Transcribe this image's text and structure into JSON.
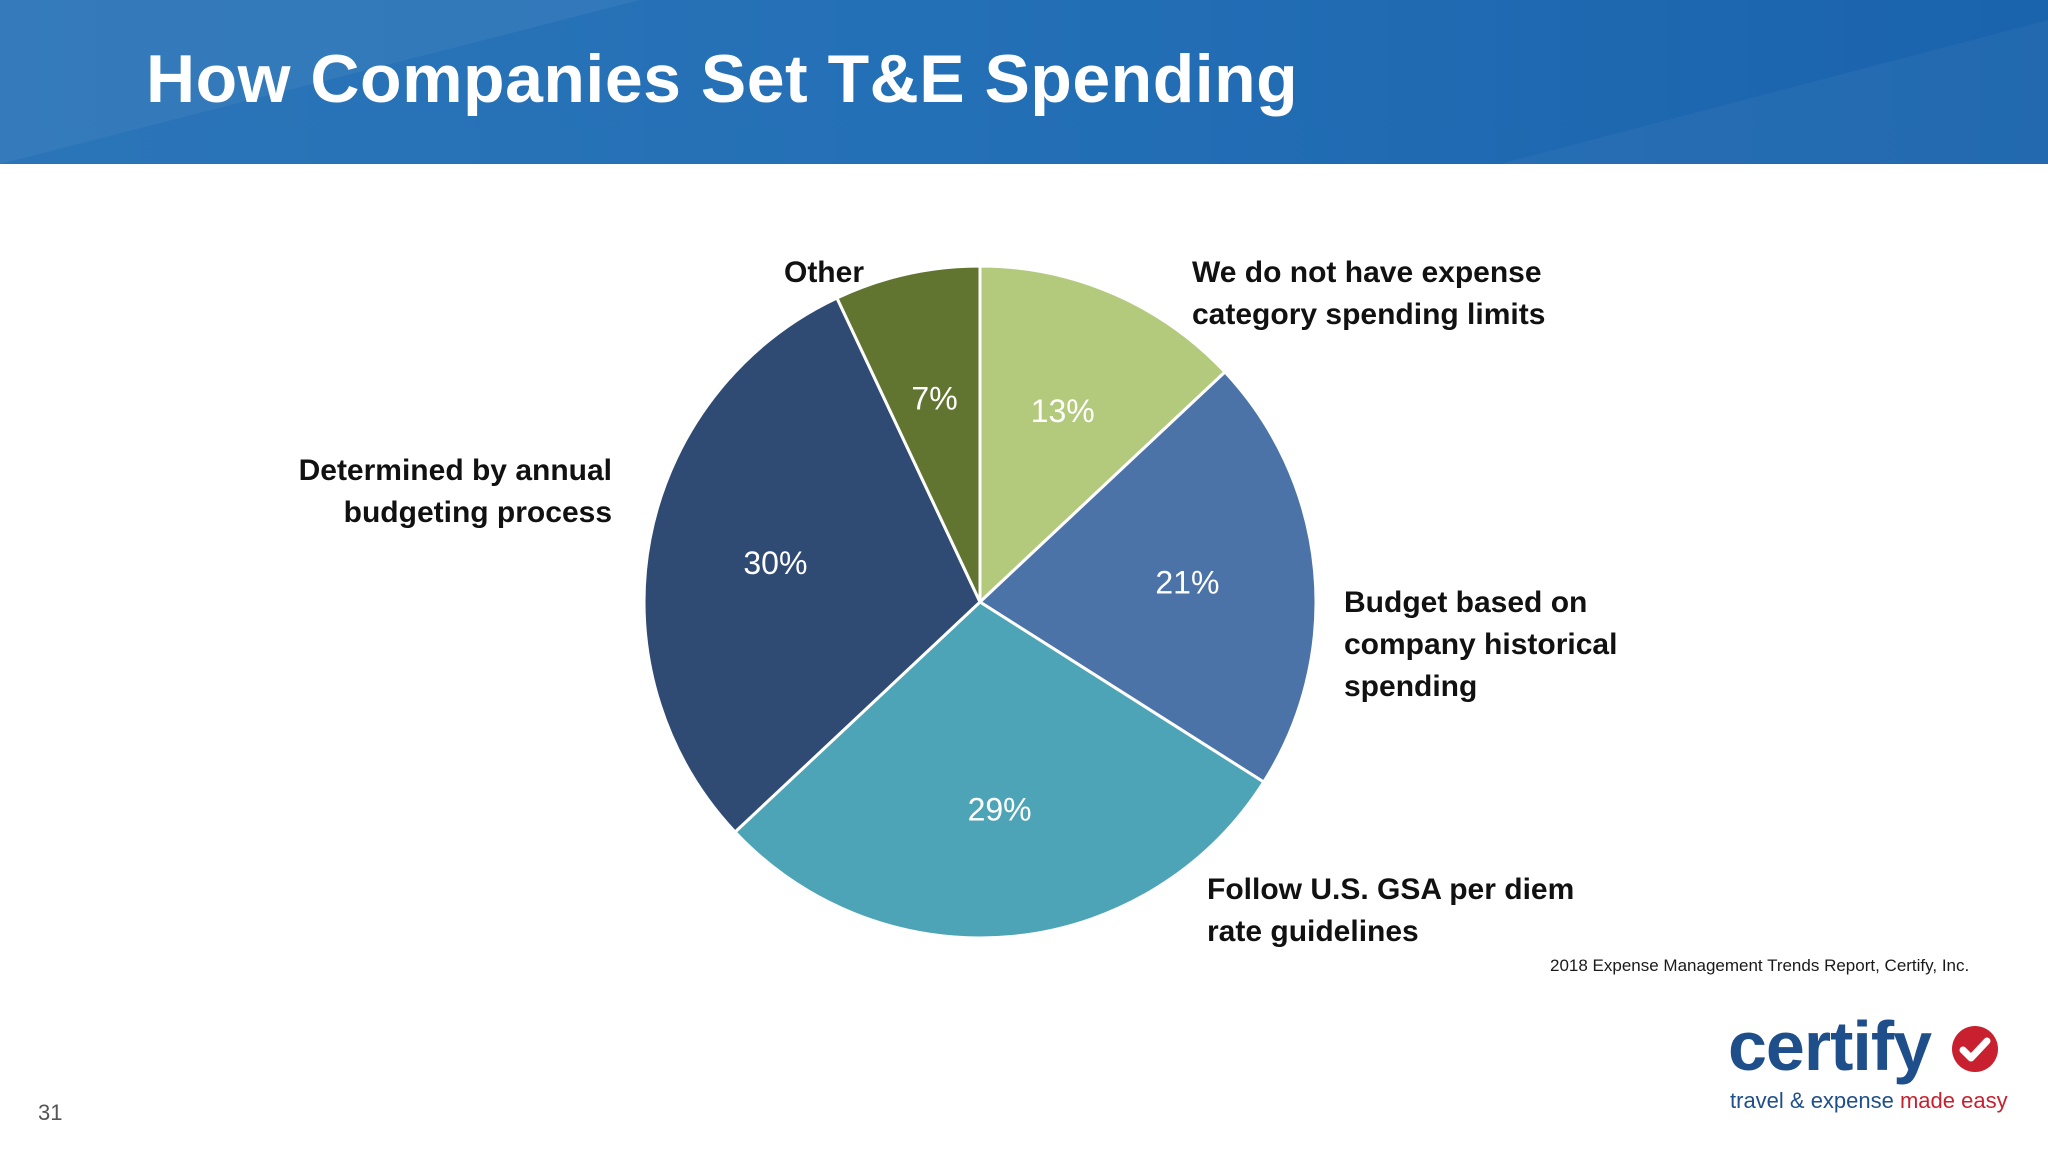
{
  "slide": {
    "title": "How Companies Set T&E Spending",
    "page_number": "31",
    "source": "2018 Expense Management Trends Report, Certify, Inc."
  },
  "logo": {
    "wordmark": "certify",
    "tagline_part1": "travel & expense ",
    "tagline_part2": "made easy",
    "brand_color": "#1f4f8a",
    "accent_color": "#c8202f"
  },
  "chart_data": {
    "type": "pie",
    "title": "",
    "start_angle_deg": 0,
    "direction": "clockwise",
    "slices": [
      {
        "label": "We do not have expense category spending limits",
        "value": 13,
        "value_label": "13%",
        "color": "#b3ca7d"
      },
      {
        "label": "Budget based on company historical spending",
        "value": 21,
        "value_label": "21%",
        "color": "#4b73a8"
      },
      {
        "label": "Follow U.S. GSA per diem rate guidelines",
        "value": 29,
        "value_label": "29%",
        "color": "#4da4b6"
      },
      {
        "label": "Determined by annual budgeting process",
        "value": 30,
        "value_label": "30%",
        "color": "#2f4b73"
      },
      {
        "label": "Other",
        "value": 7,
        "value_label": "7%",
        "color": "#617530"
      }
    ]
  }
}
